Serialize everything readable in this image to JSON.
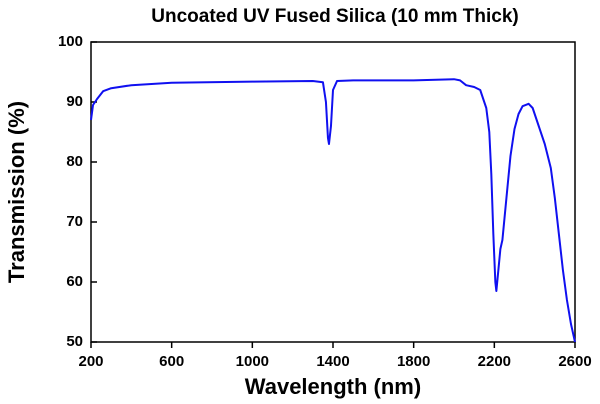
{
  "chart_data": {
    "type": "line",
    "title": "Uncoated UV Fused Silica (10 mm Thick)",
    "x_label": "Wavelength (nm)",
    "y_label": "Transmission (%)",
    "x": [
      200,
      210,
      230,
      260,
      300,
      400,
      600,
      1000,
      1300,
      1350,
      1365,
      1375,
      1380,
      1390,
      1400,
      1420,
      1500,
      1800,
      2000,
      2030,
      2060,
      2100,
      2130,
      2150,
      2160,
      2175,
      2185,
      2195,
      2205,
      2210,
      2220,
      2230,
      2240,
      2260,
      2280,
      2300,
      2320,
      2340,
      2370,
      2390,
      2420,
      2450,
      2480,
      2500,
      2520,
      2540,
      2560,
      2580,
      2600
    ],
    "series": [
      {
        "name": "Transmission",
        "color": "#1010f0",
        "values": [
          87,
          89.5,
          90.5,
          91.8,
          92.3,
          92.8,
          93.2,
          93.4,
          93.5,
          93.3,
          90,
          84,
          83,
          86,
          92,
          93.5,
          93.6,
          93.6,
          93.8,
          93.6,
          92.8,
          92.5,
          92,
          90,
          89,
          85,
          78,
          68,
          60,
          58.5,
          62,
          65.5,
          67,
          74,
          81,
          85.5,
          88,
          89.3,
          89.7,
          89,
          86,
          83,
          79,
          74,
          68,
          62,
          57,
          53,
          50
        ]
      }
    ],
    "xlim": [
      200,
      2600
    ],
    "xticks": [
      200,
      600,
      1000,
      1400,
      1800,
      2200,
      2600
    ],
    "ylim": [
      50,
      100
    ],
    "yticks": [
      50,
      60,
      70,
      80,
      90,
      100
    ]
  }
}
